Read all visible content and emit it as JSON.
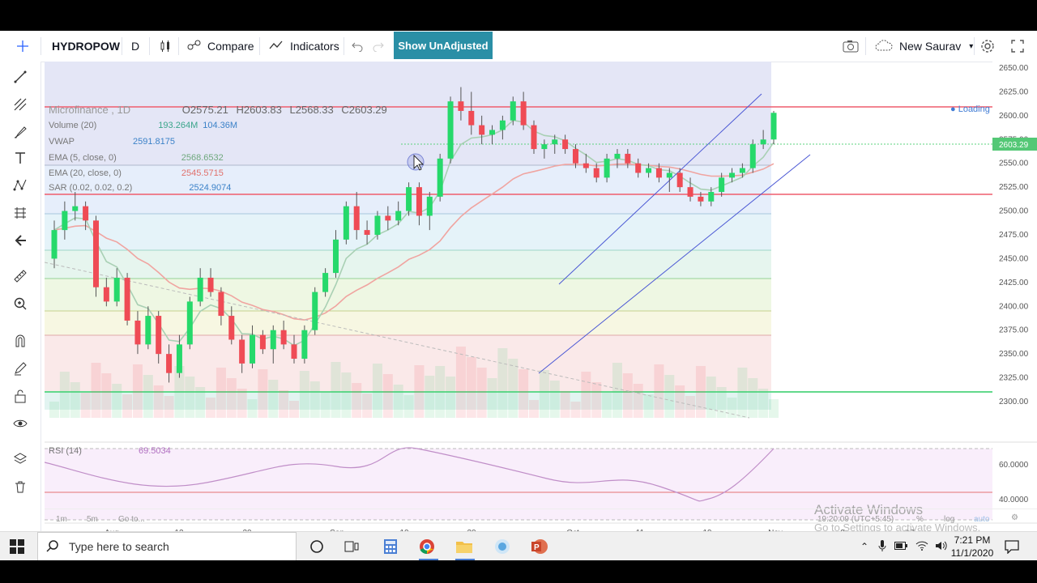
{
  "toolbar": {
    "symbol": "HYDROPOW",
    "interval": "D",
    "compare_label": "Compare",
    "indicators_label": "Indicators",
    "unadjusted_label": "Show UnAdjusted",
    "user_label": "New Saurav"
  },
  "legend": {
    "title": "Microfinance , 1D",
    "open": "O2575.21",
    "high": "H2603.83",
    "low": "L2568.33",
    "close": "C2603.29",
    "loading": "Loading",
    "volume_label": "Volume (20)",
    "volume_v1": "193.264M",
    "volume_v2": "104.36M",
    "vwap_label": "VWAP",
    "vwap_value": "2591.8175",
    "ema5_label": "EMA (5, close, 0)",
    "ema5_value": "2568.6532",
    "ema20_label": "EMA (20, close, 0)",
    "ema20_value": "2545.5715",
    "sar_label": "SAR (0.02, 0.02, 0.2)",
    "sar_value": "2524.9074",
    "rsi_label": "RSI (14)",
    "rsi_value": "69.5034"
  },
  "chart_data": {
    "type": "candlestick",
    "price_ticks": [
      "2650.00",
      "2625.00",
      "2600.00",
      "2575.00",
      "2550.00",
      "2525.00",
      "2500.00",
      "2475.00",
      "2450.00",
      "2425.00",
      "2400.00",
      "2375.00",
      "2350.00",
      "2325.00",
      "2300.00"
    ],
    "last_price_label": "2603.29",
    "rsi_ticks": [
      "60.0000",
      "40.0000"
    ],
    "date_ticks": [
      "Aug",
      "12",
      "20",
      "Sep",
      "10",
      "20",
      "Oct",
      "11",
      "19",
      "Nov",
      "9",
      "17"
    ],
    "ylim": [
      2300,
      2650
    ],
    "candles": [
      [
        2450,
        2490,
        2440,
        2480
      ],
      [
        2480,
        2510,
        2470,
        2500
      ],
      [
        2500,
        2520,
        2490,
        2505
      ],
      [
        2505,
        2510,
        2480,
        2490
      ],
      [
        2490,
        2495,
        2410,
        2420
      ],
      [
        2420,
        2430,
        2400,
        2405
      ],
      [
        2405,
        2440,
        2400,
        2430
      ],
      [
        2430,
        2435,
        2380,
        2385
      ],
      [
        2385,
        2395,
        2350,
        2360
      ],
      [
        2360,
        2400,
        2355,
        2390
      ],
      [
        2390,
        2395,
        2340,
        2350
      ],
      [
        2350,
        2360,
        2320,
        2330
      ],
      [
        2330,
        2370,
        2325,
        2360
      ],
      [
        2360,
        2410,
        2355,
        2405
      ],
      [
        2405,
        2440,
        2400,
        2430
      ],
      [
        2430,
        2440,
        2410,
        2415
      ],
      [
        2415,
        2420,
        2380,
        2390
      ],
      [
        2390,
        2400,
        2360,
        2365
      ],
      [
        2365,
        2370,
        2330,
        2340
      ],
      [
        2340,
        2380,
        2335,
        2370
      ],
      [
        2370,
        2375,
        2350,
        2355
      ],
      [
        2355,
        2380,
        2340,
        2375
      ],
      [
        2375,
        2385,
        2355,
        2360
      ],
      [
        2360,
        2370,
        2340,
        2345
      ],
      [
        2345,
        2380,
        2340,
        2375
      ],
      [
        2375,
        2420,
        2370,
        2415
      ],
      [
        2415,
        2440,
        2410,
        2435
      ],
      [
        2435,
        2480,
        2430,
        2470
      ],
      [
        2470,
        2510,
        2465,
        2505
      ],
      [
        2505,
        2520,
        2470,
        2480
      ],
      [
        2480,
        2490,
        2465,
        2475
      ],
      [
        2475,
        2500,
        2470,
        2495
      ],
      [
        2495,
        2505,
        2480,
        2490
      ],
      [
        2490,
        2510,
        2485,
        2500
      ],
      [
        2500,
        2530,
        2495,
        2525
      ],
      [
        2525,
        2530,
        2485,
        2495
      ],
      [
        2495,
        2520,
        2480,
        2515
      ],
      [
        2515,
        2560,
        2510,
        2555
      ],
      [
        2555,
        2620,
        2550,
        2615
      ],
      [
        2615,
        2630,
        2595,
        2605
      ],
      [
        2605,
        2625,
        2580,
        2590
      ],
      [
        2590,
        2600,
        2570,
        2580
      ],
      [
        2580,
        2590,
        2570,
        2585
      ],
      [
        2585,
        2600,
        2575,
        2595
      ],
      [
        2595,
        2620,
        2590,
        2615
      ],
      [
        2615,
        2625,
        2585,
        2590
      ],
      [
        2590,
        2595,
        2560,
        2565
      ],
      [
        2565,
        2575,
        2555,
        2570
      ],
      [
        2570,
        2580,
        2560,
        2575
      ],
      [
        2575,
        2580,
        2560,
        2565
      ],
      [
        2565,
        2570,
        2545,
        2550
      ],
      [
        2550,
        2560,
        2540,
        2545
      ],
      [
        2545,
        2550,
        2530,
        2535
      ],
      [
        2535,
        2560,
        2530,
        2555
      ],
      [
        2555,
        2565,
        2545,
        2560
      ],
      [
        2560,
        2565,
        2545,
        2550
      ],
      [
        2550,
        2555,
        2535,
        2540
      ],
      [
        2540,
        2550,
        2535,
        2545
      ],
      [
        2545,
        2550,
        2530,
        2535
      ],
      [
        2535,
        2545,
        2520,
        2540
      ],
      [
        2540,
        2545,
        2520,
        2525
      ],
      [
        2525,
        2535,
        2510,
        2515
      ],
      [
        2515,
        2520,
        2505,
        2510
      ],
      [
        2510,
        2525,
        2505,
        2520
      ],
      [
        2520,
        2540,
        2515,
        2535
      ],
      [
        2535,
        2545,
        2530,
        2540
      ],
      [
        2540,
        2550,
        2535,
        2545
      ],
      [
        2545,
        2575,
        2540,
        2570
      ],
      [
        2570,
        2585,
        2565,
        2575
      ],
      [
        2575,
        2605,
        2570,
        2603
      ]
    ]
  },
  "bottom": {
    "tf1": "1m",
    "tf2": "5m",
    "goto": "Go to...",
    "clock": "19:20:09 (UTC+5:45)",
    "pct": "%",
    "log": "log",
    "auto": "auto"
  },
  "watermark": {
    "line1": "Activate Windows",
    "line2": "Go to Settings to activate Windows."
  },
  "taskbar": {
    "search_placeholder": "Type here to search",
    "time": "7:21 PM",
    "date": "11/1/2020"
  }
}
